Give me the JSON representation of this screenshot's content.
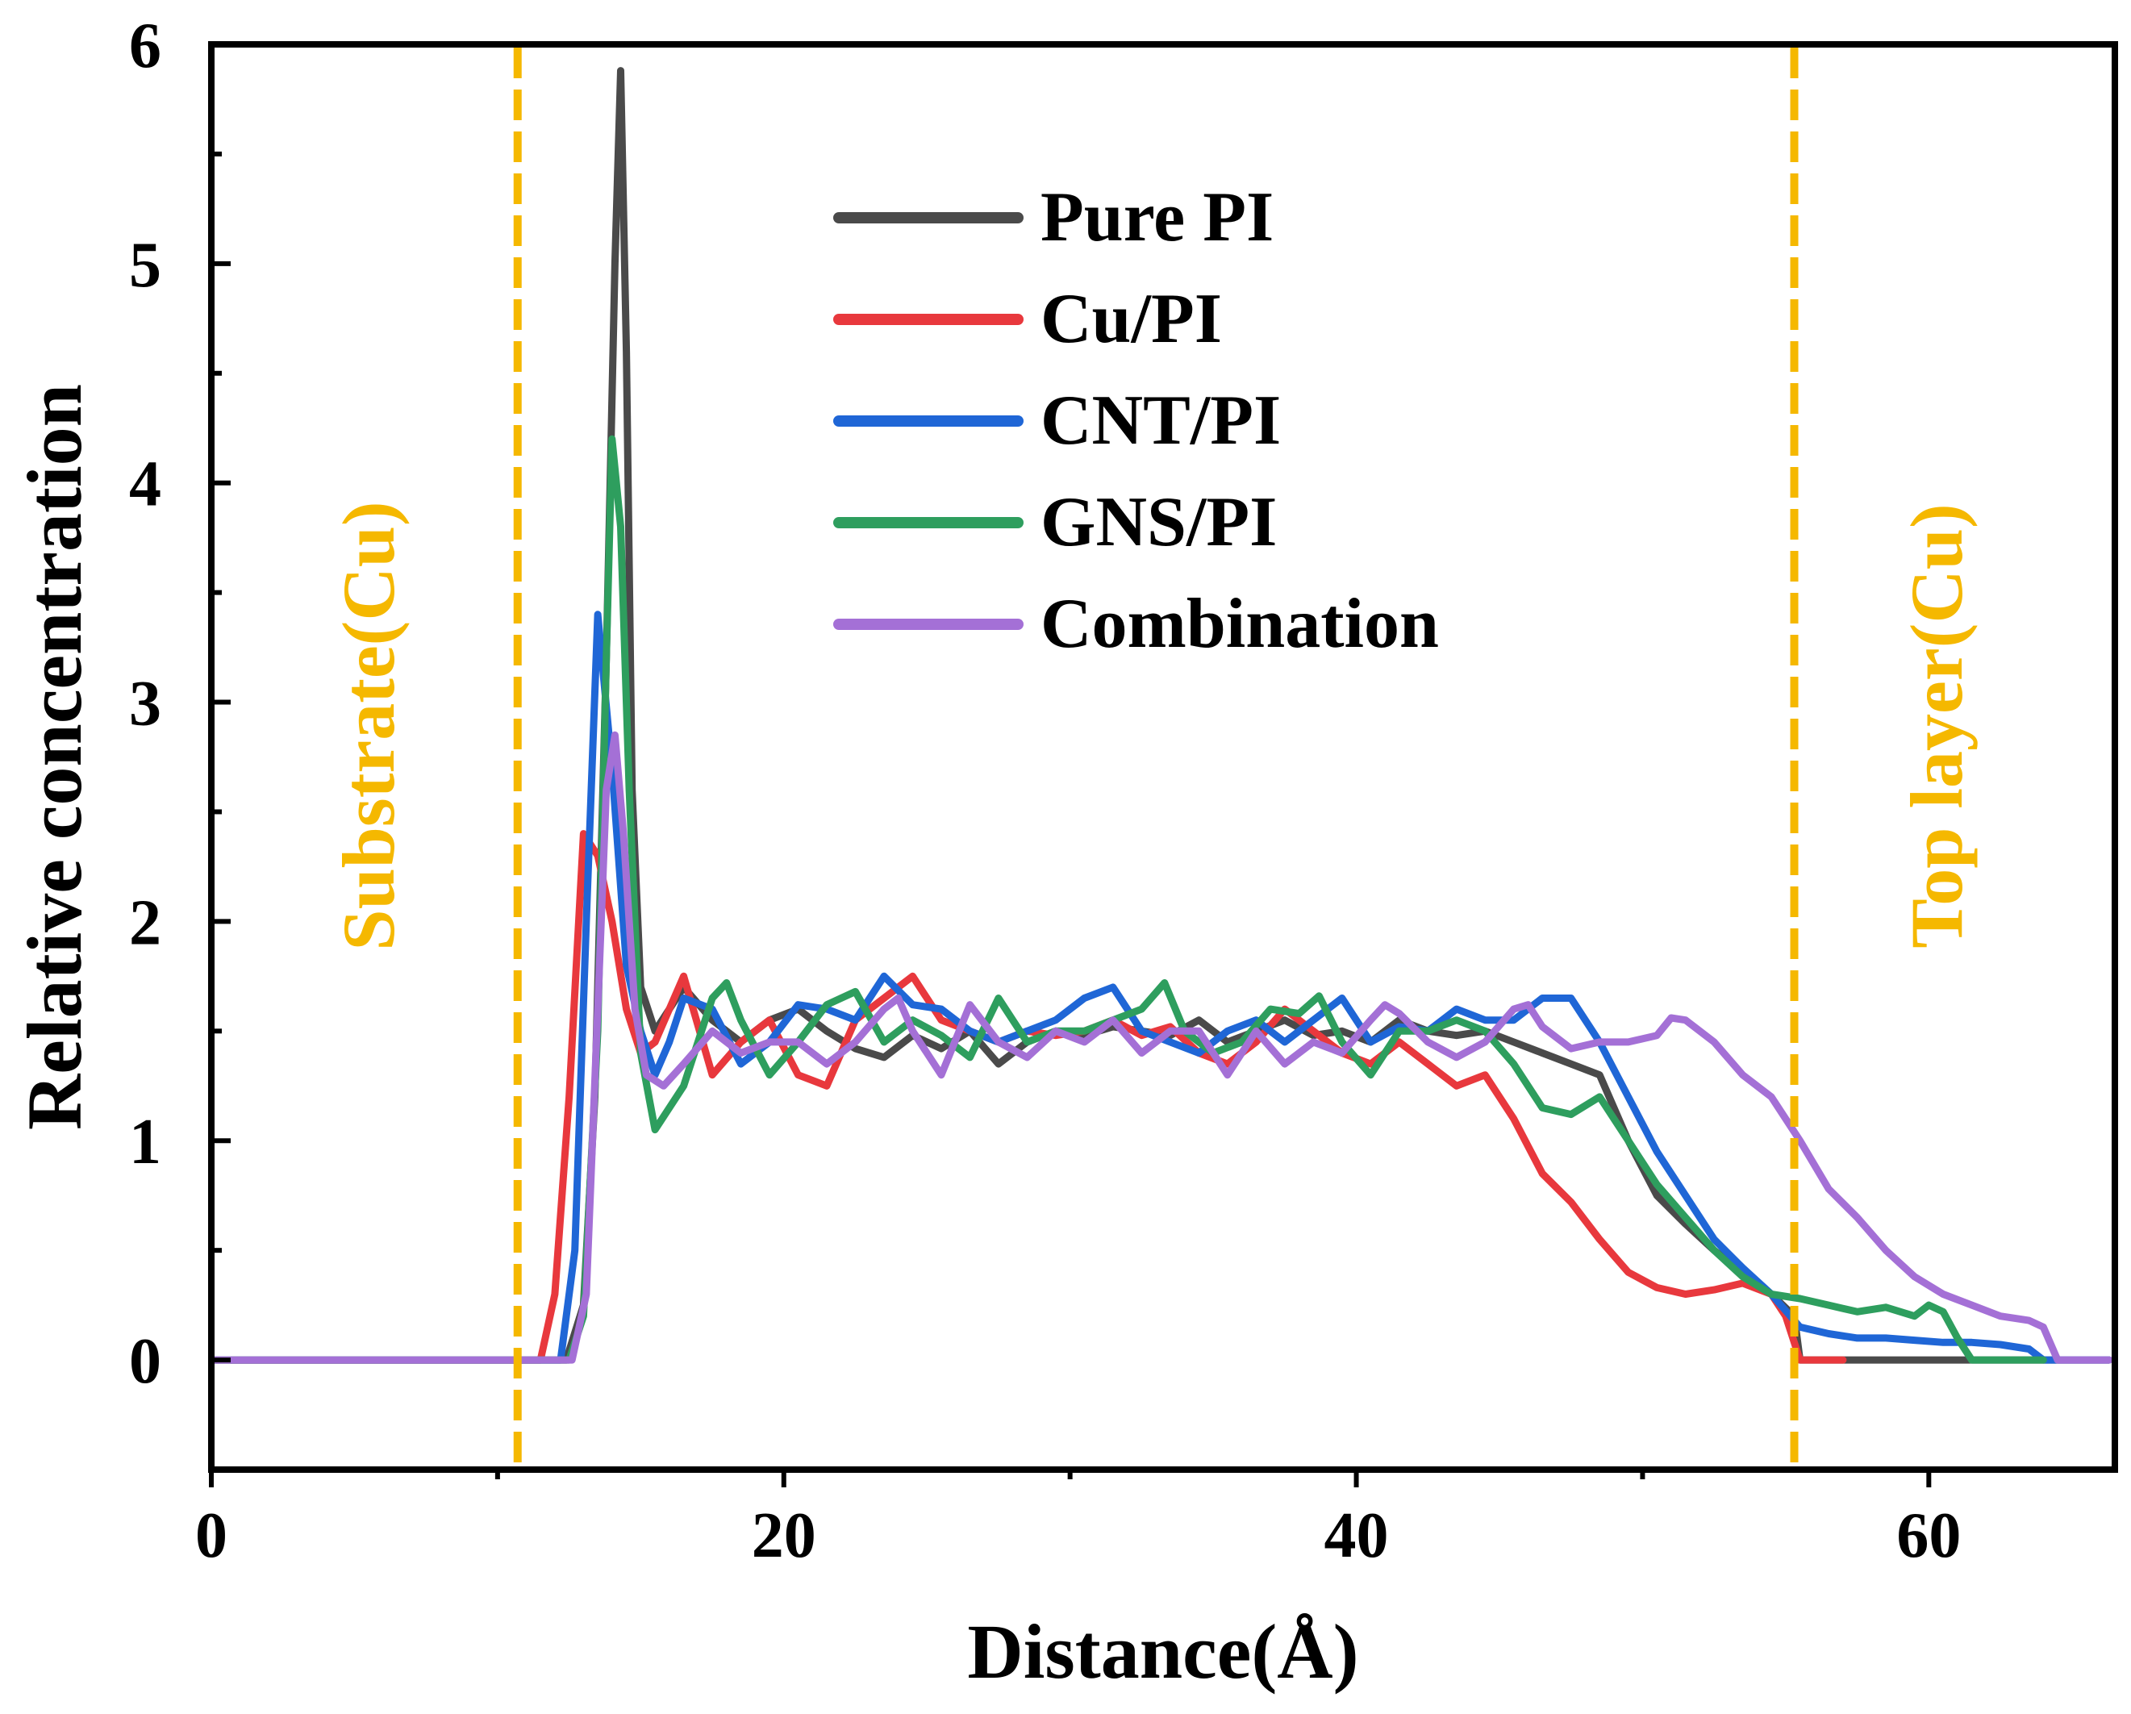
{
  "chart_data": {
    "type": "line",
    "title": "",
    "xlabel": "Distance(Å)",
    "ylabel": "Relative concentration",
    "xlim": [
      0,
      66.5
    ],
    "ylim": [
      -0.5,
      6
    ],
    "x_ticks": [
      0,
      20,
      40,
      60
    ],
    "x_tick_labels": [
      "0",
      "20",
      "40",
      "60"
    ],
    "y_ticks": [
      0,
      1,
      2,
      3,
      4,
      5,
      6
    ],
    "y_tick_labels": [
      "0",
      "1",
      "2",
      "3",
      "4",
      "5",
      "6"
    ],
    "grid": false,
    "legend_position": "top-center",
    "annotations": [
      {
        "text": "Substrate(Cu)",
        "x": 10.7,
        "color": "#F5B800"
      },
      {
        "text": "Top layer(Cu)",
        "x": 55.3,
        "color": "#F5B800"
      }
    ],
    "series": [
      {
        "name": "Pure PI",
        "color": "#4A4A4A",
        "x": [
          0,
          12.4,
          13.0,
          13.4,
          13.8,
          14.1,
          14.3,
          14.5,
          14.7,
          15.0,
          15.5,
          16.5,
          17.5,
          18.5,
          19.5,
          20.5,
          21.5,
          22.5,
          23.5,
          24.5,
          25.5,
          26.5,
          27.5,
          28.5,
          29.5,
          30.5,
          31.5,
          32.5,
          33.5,
          34.5,
          35.5,
          36.5,
          37.5,
          38.5,
          39.5,
          40.5,
          41.5,
          42.5,
          43.5,
          44.5,
          45.5,
          46.5,
          47.5,
          48.5,
          49.5,
          50.5,
          51.5,
          52.5,
          53.5,
          54.5,
          55.3,
          55.5,
          56.5,
          57.5,
          58.5,
          59.5,
          60.5,
          61.5,
          62.5,
          63.5,
          64.5,
          65.5,
          66.3
        ],
        "values": [
          0,
          0,
          0.25,
          1.2,
          3.2,
          5.0,
          5.88,
          4.6,
          2.6,
          1.7,
          1.5,
          1.7,
          1.55,
          1.45,
          1.55,
          1.6,
          1.5,
          1.42,
          1.38,
          1.48,
          1.42,
          1.5,
          1.35,
          1.45,
          1.5,
          1.48,
          1.52,
          1.5,
          1.48,
          1.55,
          1.45,
          1.5,
          1.55,
          1.48,
          1.5,
          1.45,
          1.55,
          1.5,
          1.48,
          1.5,
          1.45,
          1.4,
          1.35,
          1.3,
          1.0,
          0.75,
          0.62,
          0.5,
          0.4,
          0.3,
          0.2,
          0.0,
          0,
          0,
          0,
          0,
          0,
          0,
          0,
          0,
          0,
          0,
          0
        ]
      },
      {
        "name": "Cu/PI",
        "color": "#E8383D",
        "x": [
          0,
          11.5,
          12.0,
          12.5,
          13.0,
          13.5,
          14.0,
          14.5,
          15.0,
          15.5,
          16.5,
          17.5,
          18.5,
          19.5,
          20.5,
          21.5,
          22.5,
          23.5,
          24.5,
          25.5,
          26.5,
          27.5,
          28.5,
          29.5,
          30.5,
          31.5,
          32.5,
          33.5,
          34.5,
          35.5,
          36.5,
          37.5,
          38.5,
          39.5,
          40.5,
          41.5,
          42.5,
          43.5,
          44.5,
          45.5,
          46.5,
          47.5,
          48.5,
          49.5,
          50.5,
          51.5,
          52.5,
          53.5,
          54.5,
          55.0,
          55.5,
          56.0,
          57.0
        ],
        "values": [
          0,
          0,
          0.3,
          1.2,
          2.4,
          2.3,
          2.0,
          1.6,
          1.4,
          1.45,
          1.75,
          1.3,
          1.45,
          1.55,
          1.3,
          1.25,
          1.55,
          1.65,
          1.75,
          1.55,
          1.5,
          1.45,
          1.5,
          1.48,
          1.5,
          1.55,
          1.48,
          1.52,
          1.4,
          1.35,
          1.45,
          1.6,
          1.5,
          1.4,
          1.35,
          1.45,
          1.35,
          1.25,
          1.3,
          1.1,
          0.85,
          0.72,
          0.55,
          0.4,
          0.33,
          0.3,
          0.32,
          0.35,
          0.3,
          0.2,
          0.0,
          0.0,
          0.0
        ]
      },
      {
        "name": "CNT/PI",
        "color": "#1F66D6",
        "x": [
          0,
          12.2,
          12.7,
          13.1,
          13.5,
          14.0,
          14.5,
          15.0,
          15.5,
          16.0,
          16.5,
          17.5,
          18.5,
          19.5,
          20.5,
          21.5,
          22.5,
          23.5,
          24.5,
          25.5,
          26.5,
          27.5,
          28.5,
          29.5,
          30.5,
          31.5,
          32.5,
          33.5,
          34.5,
          35.5,
          36.5,
          37.5,
          38.5,
          39.5,
          40.5,
          41.5,
          42.5,
          43.5,
          44.5,
          45.5,
          46.5,
          47.5,
          48.5,
          49.5,
          50.5,
          51.5,
          52.5,
          53.5,
          54.5,
          55.5,
          56.5,
          57.5,
          58.5,
          59.5,
          60.5,
          61.5,
          62.5,
          63.5,
          64.0,
          64.5,
          66.3
        ],
        "values": [
          0,
          0,
          0.5,
          2.0,
          3.4,
          2.7,
          1.8,
          1.5,
          1.3,
          1.45,
          1.65,
          1.6,
          1.35,
          1.45,
          1.62,
          1.6,
          1.55,
          1.75,
          1.62,
          1.6,
          1.5,
          1.45,
          1.5,
          1.55,
          1.65,
          1.7,
          1.5,
          1.45,
          1.4,
          1.5,
          1.55,
          1.45,
          1.55,
          1.65,
          1.45,
          1.52,
          1.5,
          1.6,
          1.55,
          1.55,
          1.65,
          1.65,
          1.45,
          1.2,
          0.95,
          0.75,
          0.55,
          0.42,
          0.3,
          0.15,
          0.12,
          0.1,
          0.1,
          0.09,
          0.08,
          0.08,
          0.07,
          0.05,
          0.0,
          0.0,
          0.0
        ]
      },
      {
        "name": "GNS/PI",
        "color": "#2E9E5E",
        "x": [
          0,
          12.5,
          13.0,
          13.5,
          13.8,
          14.0,
          14.3,
          14.6,
          15.0,
          15.5,
          16.5,
          17.5,
          18.0,
          18.5,
          19.5,
          20.5,
          21.5,
          22.5,
          23.5,
          24.5,
          25.5,
          26.5,
          27.5,
          28.5,
          29.5,
          30.5,
          31.5,
          32.5,
          33.3,
          34.0,
          35.0,
          36.0,
          37.0,
          38.0,
          38.7,
          39.5,
          40.5,
          41.5,
          42.5,
          43.5,
          44.5,
          45.5,
          46.5,
          47.5,
          48.5,
          49.5,
          50.5,
          51.5,
          52.5,
          53.5,
          54.5,
          55.5,
          56.5,
          57.5,
          58.5,
          59.5,
          60.0,
          60.5,
          61.0,
          61.5,
          62.5,
          63.5,
          64.0
        ],
        "values": [
          0,
          0,
          0.2,
          1.5,
          3.2,
          4.2,
          3.8,
          2.6,
          1.4,
          1.05,
          1.25,
          1.65,
          1.72,
          1.55,
          1.3,
          1.45,
          1.62,
          1.68,
          1.45,
          1.55,
          1.48,
          1.38,
          1.65,
          1.45,
          1.5,
          1.5,
          1.55,
          1.6,
          1.72,
          1.5,
          1.4,
          1.45,
          1.6,
          1.58,
          1.66,
          1.45,
          1.3,
          1.5,
          1.5,
          1.55,
          1.5,
          1.35,
          1.15,
          1.12,
          1.2,
          1.0,
          0.8,
          0.65,
          0.5,
          0.38,
          0.3,
          0.28,
          0.25,
          0.22,
          0.24,
          0.2,
          0.25,
          0.22,
          0.1,
          0.0,
          0.0,
          0.0,
          0.0
        ]
      },
      {
        "name": "Combination",
        "color": "#A470D6",
        "x": [
          0,
          12.6,
          13.1,
          13.5,
          13.8,
          14.1,
          14.4,
          14.8,
          15.2,
          15.8,
          16.5,
          17.5,
          18.5,
          19.5,
          20.5,
          21.5,
          22.5,
          23.5,
          24.0,
          24.5,
          25.5,
          26.5,
          27.5,
          28.5,
          29.5,
          30.5,
          31.5,
          32.5,
          33.5,
          34.5,
          35.5,
          36.5,
          37.5,
          38.5,
          39.5,
          40.5,
          41.0,
          41.5,
          42.5,
          43.5,
          44.5,
          45.5,
          46.0,
          46.5,
          47.5,
          48.5,
          49.5,
          50.5,
          51.0,
          51.5,
          52.5,
          53.5,
          54.5,
          55.5,
          56.5,
          57.5,
          58.5,
          59.5,
          60.5,
          61.5,
          62.5,
          63.5,
          64.0,
          64.5,
          66.3
        ],
        "values": [
          0,
          0,
          0.3,
          1.6,
          2.6,
          2.85,
          2.4,
          1.6,
          1.3,
          1.25,
          1.35,
          1.5,
          1.4,
          1.45,
          1.45,
          1.35,
          1.45,
          1.6,
          1.65,
          1.5,
          1.3,
          1.62,
          1.45,
          1.38,
          1.5,
          1.45,
          1.55,
          1.4,
          1.5,
          1.5,
          1.3,
          1.5,
          1.35,
          1.45,
          1.4,
          1.55,
          1.62,
          1.58,
          1.45,
          1.38,
          1.45,
          1.6,
          1.62,
          1.52,
          1.42,
          1.45,
          1.45,
          1.48,
          1.56,
          1.55,
          1.45,
          1.3,
          1.2,
          1.0,
          0.78,
          0.65,
          0.5,
          0.38,
          0.3,
          0.25,
          0.2,
          0.18,
          0.15,
          0.0,
          0.0
        ]
      }
    ]
  }
}
